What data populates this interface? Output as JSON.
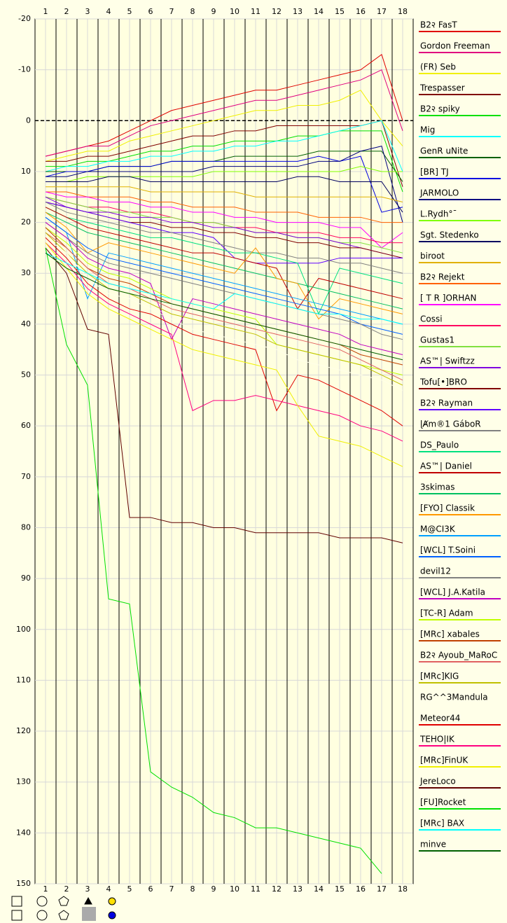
{
  "chart_data": {
    "type": "line",
    "x": [
      1,
      2,
      3,
      4,
      5,
      6,
      7,
      8,
      9,
      10,
      11,
      12,
      13,
      14,
      15,
      16,
      17,
      18
    ],
    "xlim": [
      0.5,
      18.5
    ],
    "xticks": [
      1,
      2,
      3,
      4,
      5,
      6,
      7,
      8,
      9,
      10,
      11,
      12,
      13,
      14,
      15,
      16,
      17,
      18
    ],
    "ylim": [
      -20,
      150
    ],
    "yticks": [
      -20,
      -10,
      0,
      10,
      20,
      30,
      40,
      50,
      60,
      70,
      80,
      90,
      100,
      110,
      120,
      130,
      140,
      150
    ],
    "y_inverted": true,
    "grid": true,
    "reference_line": 0,
    "series": [
      {
        "name": "B2२ FasT",
        "color": "#e00000",
        "values": [
          7,
          6,
          5,
          4,
          2,
          0,
          -2,
          -3,
          -4,
          -5,
          -6,
          -6,
          -7,
          -8,
          -9,
          -10,
          -13,
          0
        ]
      },
      {
        "name": "Gordon Freeman",
        "color": "#e0007f",
        "values": [
          7,
          6,
          5,
          5,
          3,
          1,
          0,
          -1,
          -2,
          -3,
          -4,
          -4,
          -5,
          -6,
          -7,
          -8,
          -10,
          2
        ]
      },
      {
        "name": "(FR) Seb",
        "color": "#f0f000",
        "values": [
          8,
          7,
          6,
          6,
          4,
          3,
          2,
          1,
          0,
          -1,
          -2,
          -2,
          -3,
          -3,
          -4,
          -6,
          0,
          5
        ]
      },
      {
        "name": "Trespasser",
        "color": "#800000",
        "values": [
          8,
          8,
          7,
          7,
          6,
          5,
          4,
          3,
          3,
          2,
          2,
          1,
          1,
          1,
          1,
          1,
          0,
          13
        ]
      },
      {
        "name": "B2२ spiky",
        "color": "#00e000",
        "values": [
          9,
          9,
          8,
          8,
          7,
          6,
          6,
          5,
          5,
          4,
          4,
          4,
          3,
          3,
          2,
          2,
          2,
          14
        ]
      },
      {
        "name": "Mig",
        "color": "#00ffff",
        "values": [
          10,
          9,
          9,
          8,
          8,
          7,
          7,
          6,
          6,
          5,
          5,
          4,
          4,
          3,
          2,
          1,
          0,
          10
        ]
      },
      {
        "name": "GenR uNite",
        "color": "#006000",
        "values": [
          10,
          10,
          10,
          9,
          9,
          9,
          8,
          8,
          8,
          7,
          7,
          7,
          7,
          6,
          6,
          6,
          6,
          12
        ]
      },
      {
        "name": "[BR] TJ",
        "color": "#0000e0",
        "values": [
          11,
          10,
          10,
          9,
          9,
          9,
          8,
          8,
          8,
          8,
          8,
          8,
          8,
          7,
          8,
          7,
          18,
          17
        ]
      },
      {
        "name": "JARMOLO",
        "color": "#000080",
        "values": [
          11,
          11,
          10,
          10,
          10,
          10,
          10,
          10,
          9,
          9,
          9,
          9,
          9,
          8,
          8,
          6,
          5,
          20
        ]
      },
      {
        "name": "L.Rydh°¯",
        "color": "#80ff00",
        "values": [
          12,
          12,
          11,
          11,
          11,
          11,
          11,
          11,
          10,
          10,
          10,
          10,
          10,
          10,
          10,
          9,
          10,
          10
        ]
      },
      {
        "name": "Sgt. Stedenko",
        "color": "#000060",
        "values": [
          12,
          12,
          12,
          11,
          11,
          12,
          12,
          12,
          12,
          12,
          12,
          12,
          11,
          11,
          12,
          12,
          12,
          18
        ]
      },
      {
        "name": "biroot",
        "color": "#e0b000",
        "values": [
          13,
          13,
          13,
          13,
          13,
          14,
          14,
          14,
          14,
          14,
          15,
          15,
          15,
          15,
          15,
          15,
          15,
          16
        ]
      },
      {
        "name": "B2२ Rejekt",
        "color": "#ff6000",
        "values": [
          14,
          14,
          15,
          15,
          15,
          16,
          16,
          17,
          17,
          17,
          18,
          18,
          18,
          19,
          19,
          19,
          20,
          20
        ]
      },
      {
        "name": "[ T R ]ORHAN",
        "color": "#ff00ff",
        "values": [
          14,
          15,
          15,
          16,
          16,
          17,
          17,
          18,
          18,
          19,
          19,
          20,
          20,
          20,
          21,
          21,
          25,
          22
        ]
      },
      {
        "name": "Cossi",
        "color": "#ff0060",
        "values": [
          15,
          16,
          17,
          17,
          18,
          18,
          19,
          20,
          20,
          21,
          21,
          22,
          22,
          22,
          23,
          23,
          24,
          24
        ]
      },
      {
        "name": "Gustas1",
        "color": "#80e040",
        "values": [
          15,
          16,
          17,
          18,
          18,
          19,
          19,
          20,
          20,
          21,
          22,
          22,
          23,
          23,
          24,
          24,
          25,
          26
        ]
      },
      {
        "name": "AS™| Swiftzz",
        "color": "#8000e0",
        "values": [
          15,
          17,
          18,
          18,
          19,
          19,
          20,
          20,
          21,
          21,
          22,
          22,
          23,
          23,
          24,
          25,
          26,
          27
        ]
      },
      {
        "name": "Tofu[•]BRO",
        "color": "#800000",
        "values": [
          16,
          17,
          18,
          19,
          20,
          20,
          21,
          21,
          22,
          22,
          23,
          23,
          24,
          24,
          25,
          25,
          26,
          27
        ]
      },
      {
        "name": "B2२ Rayman",
        "color": "#6000ff",
        "values": [
          16,
          17,
          18,
          19,
          20,
          21,
          22,
          22,
          23,
          27,
          28,
          28,
          28,
          28,
          27,
          27,
          27,
          27
        ]
      },
      {
        "name": "ɭȺm®1 GáboR",
        "color": "#808080",
        "values": [
          16,
          18,
          19,
          20,
          21,
          22,
          22,
          23,
          24,
          25,
          26,
          26,
          27,
          27,
          28,
          28,
          29,
          30
        ]
      },
      {
        "name": "DS_Paulo",
        "color": "#00e080",
        "values": [
          17,
          19,
          20,
          21,
          22,
          23,
          23,
          24,
          25,
          26,
          26,
          27,
          28,
          38,
          29,
          30,
          31,
          32
        ]
      },
      {
        "name": "AS™| Daniel",
        "color": "#c00000",
        "values": [
          17,
          19,
          21,
          22,
          23,
          24,
          25,
          26,
          26,
          27,
          28,
          29,
          37,
          31,
          32,
          33,
          34,
          35
        ]
      },
      {
        "name": "3skimas",
        "color": "#00c060",
        "values": [
          18,
          20,
          22,
          23,
          24,
          25,
          26,
          27,
          28,
          29,
          30,
          31,
          32,
          33,
          34,
          35,
          36,
          37
        ]
      },
      {
        "name": "[FYO] Classik",
        "color": "#ff9900",
        "values": [
          18,
          21,
          26,
          24,
          25,
          26,
          27,
          28,
          29,
          30,
          25,
          31,
          32,
          39,
          35,
          36,
          37,
          38
        ]
      },
      {
        "name": "M@CI3K",
        "color": "#00a0ff",
        "values": [
          19,
          22,
          35,
          26,
          27,
          28,
          29,
          30,
          31,
          32,
          33,
          34,
          35,
          36,
          37,
          38,
          39,
          40
        ]
      },
      {
        "name": "[WCL] T.Soini",
        "color": "#0060ff",
        "values": [
          19,
          22,
          25,
          27,
          28,
          29,
          30,
          31,
          32,
          33,
          34,
          35,
          36,
          37,
          38,
          40,
          41,
          42
        ]
      },
      {
        "name": "devil12",
        "color": "#808080",
        "values": [
          20,
          23,
          26,
          28,
          29,
          30,
          31,
          32,
          33,
          34,
          35,
          36,
          37,
          38,
          39,
          40,
          42,
          43
        ]
      },
      {
        "name": "[WCL] J.A.Katila",
        "color": "#c000c0",
        "values": [
          20,
          23,
          27,
          29,
          30,
          32,
          43,
          35,
          36,
          37,
          38,
          39,
          40,
          41,
          42,
          44,
          45,
          46
        ]
      },
      {
        "name": "[TC-R] Adam",
        "color": "#c0ff00",
        "values": [
          21,
          24,
          28,
          30,
          31,
          33,
          35,
          36,
          37,
          38,
          39,
          44,
          45,
          46,
          47,
          48,
          49,
          50
        ]
      },
      {
        "name": "[MRc] xabales",
        "color": "#c04000",
        "values": [
          21,
          25,
          29,
          31,
          32,
          34,
          36,
          37,
          38,
          39,
          40,
          41,
          42,
          43,
          44,
          46,
          47,
          48
        ]
      },
      {
        "name": "B2२ Ayoub_MaRoC",
        "color": "#e06060",
        "values": [
          22,
          25,
          29,
          32,
          33,
          35,
          37,
          38,
          39,
          40,
          41,
          42,
          43,
          44,
          45,
          47,
          49,
          51
        ]
      },
      {
        "name": "[MRc]KIG",
        "color": "#c0c000",
        "values": [
          22,
          26,
          30,
          33,
          34,
          36,
          38,
          39,
          40,
          41,
          42,
          44,
          45,
          46,
          47,
          48,
          50,
          52
        ]
      },
      {
        "name": "RG^^3Mandula",
        "color": "#ffffe8",
        "values": [
          23,
          26,
          31,
          34,
          35,
          37,
          39,
          41,
          42,
          43,
          44,
          45,
          47,
          48,
          49,
          50,
          51,
          53
        ]
      },
      {
        "name": "Meteor44",
        "color": "#e00000",
        "values": [
          23,
          27,
          32,
          35,
          37,
          38,
          40,
          42,
          43,
          44,
          45,
          57,
          50,
          51,
          53,
          55,
          57,
          60
        ]
      },
      {
        "name": "TEHO|IK",
        "color": "#ff0080",
        "values": [
          24,
          28,
          33,
          36,
          38,
          40,
          42,
          57,
          55,
          55,
          54,
          55,
          56,
          57,
          58,
          60,
          61,
          63
        ]
      },
      {
        "name": "[MRc]FinUK",
        "color": "#f0f000",
        "values": [
          24,
          29,
          34,
          37,
          39,
          41,
          43,
          45,
          46,
          47,
          48,
          49,
          56,
          62,
          63,
          64,
          66,
          68
        ]
      },
      {
        "name": "JereLoco",
        "color": "#600000",
        "values": [
          25,
          30,
          41,
          42,
          78,
          78,
          79,
          79,
          80,
          80,
          81,
          81,
          81,
          81,
          82,
          82,
          82,
          83
        ]
      },
      {
        "name": "[FU]Rocket",
        "color": "#00e000",
        "values": [
          25,
          44,
          52,
          94,
          95,
          128,
          131,
          133,
          136,
          137,
          139,
          139,
          140,
          141,
          142,
          143,
          148,
          null
        ]
      },
      {
        "name": "[MRc] BAX",
        "color": "#00ffff",
        "values": [
          26,
          28,
          30,
          32,
          33,
          34,
          35,
          36,
          37,
          34,
          35,
          36,
          37,
          38,
          38,
          39,
          39,
          40
        ]
      },
      {
        "name": "minve",
        "color": "#006000",
        "values": [
          26,
          29,
          31,
          33,
          34,
          35,
          36,
          37,
          38,
          39,
          40,
          41,
          42,
          43,
          44,
          45,
          46,
          47
        ]
      }
    ]
  }
}
